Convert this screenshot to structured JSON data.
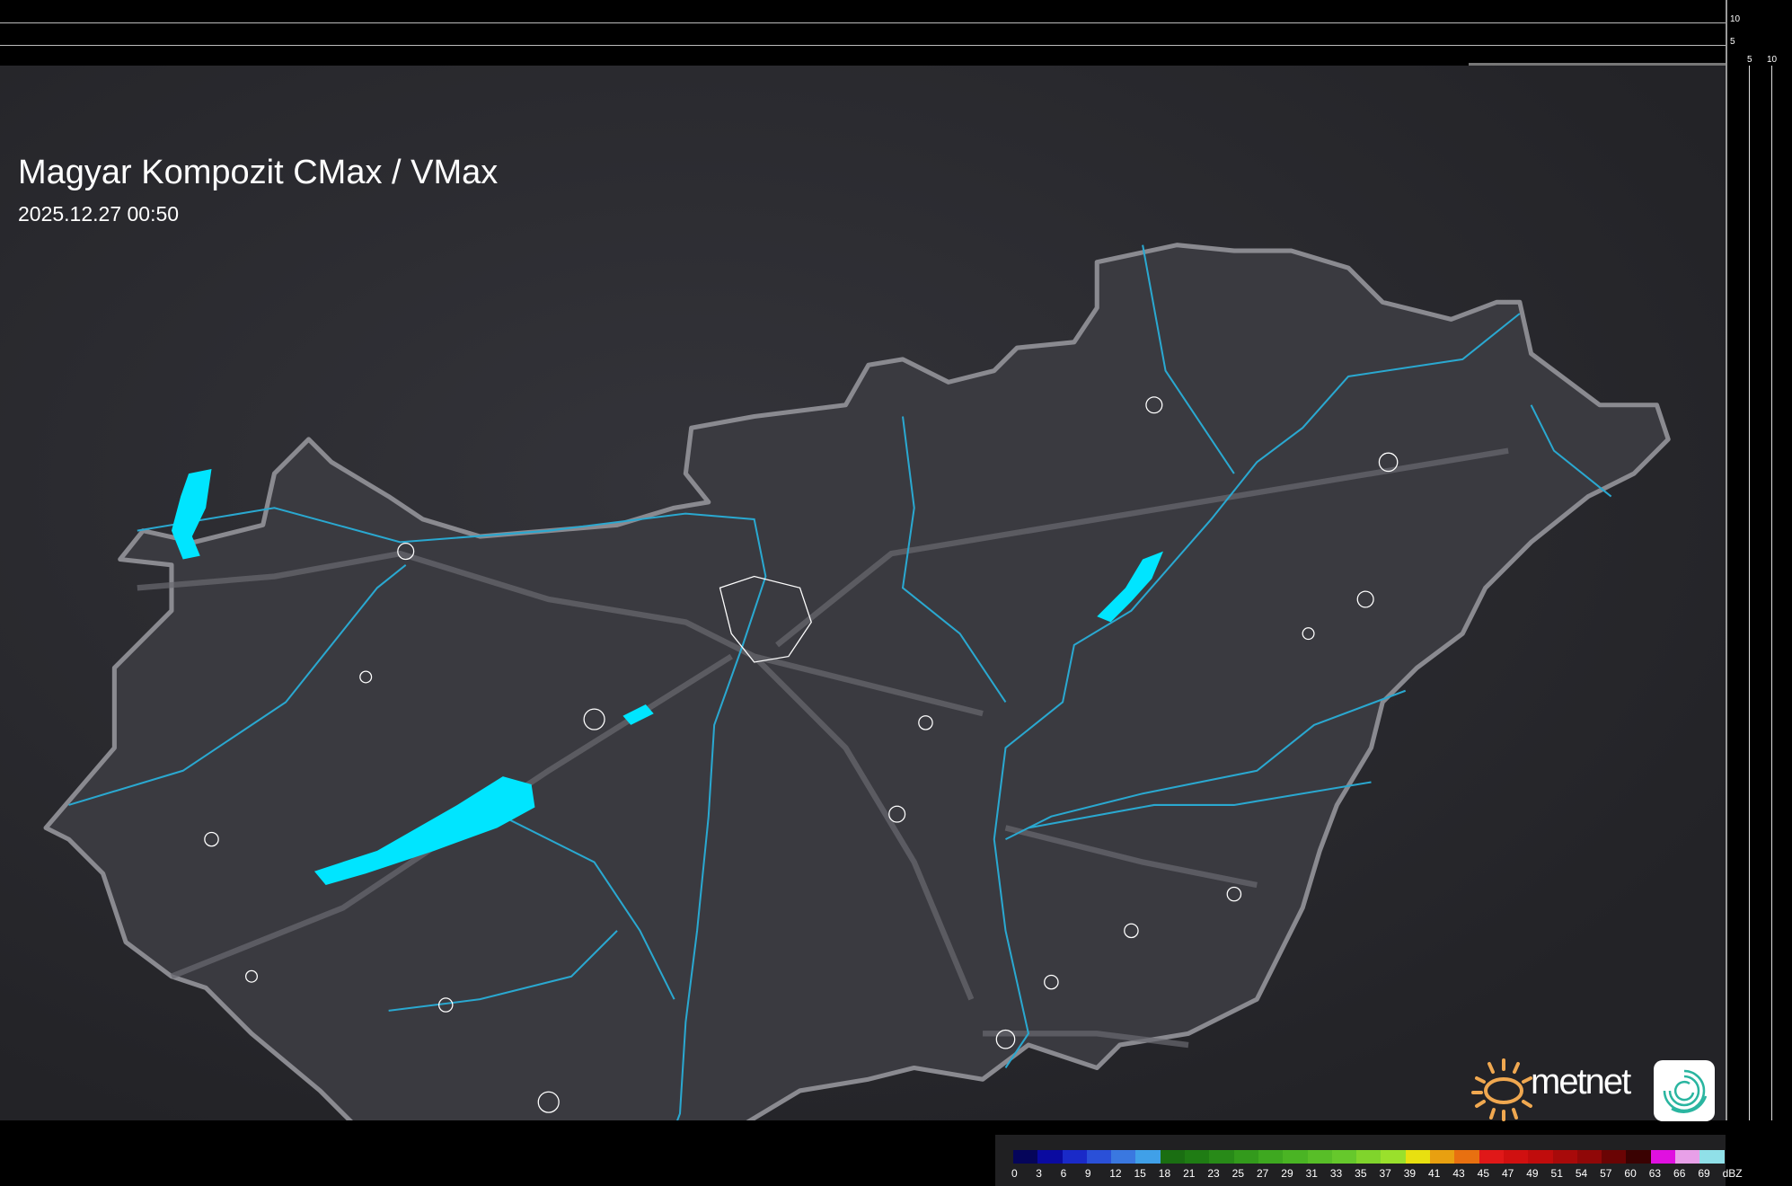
{
  "header": {
    "title": "Magyar Kompozit CMax / VMax",
    "timestamp": "2025.12.27 00:50"
  },
  "frame_axes": {
    "vertical_labels": [
      "10",
      "5"
    ],
    "horizontal_labels": [
      "5",
      "10"
    ]
  },
  "logo": {
    "text": "metnet",
    "sun_color": "#f0a850",
    "swirl_color": "#2ab5a0"
  },
  "map": {
    "background_color": "#2a2a2e",
    "country_fill": "#3a3a40",
    "border_color": "#8a8a90",
    "water_color": "#00e5ff",
    "river_color": "#2aa8d0",
    "settlement_outline_color": "#ffffff"
  },
  "legend": {
    "unit": "dBZ",
    "labels": [
      "0",
      "3",
      "6",
      "9",
      "12",
      "15",
      "18",
      "21",
      "23",
      "25",
      "27",
      "29",
      "31",
      "33",
      "35",
      "37",
      "39",
      "41",
      "43",
      "45",
      "47",
      "49",
      "51",
      "54",
      "57",
      "60",
      "63",
      "66",
      "69"
    ],
    "colors": [
      "#05055a",
      "#0a0aa0",
      "#1a2ac8",
      "#2a50d8",
      "#3a78e0",
      "#40a0e8",
      "#1a6e12",
      "#1f7c14",
      "#288a18",
      "#339a1c",
      "#3ea820",
      "#4ab424",
      "#58be28",
      "#66c82c",
      "#80d42c",
      "#9ae02c",
      "#e8e010",
      "#e8a010",
      "#e87010",
      "#e01818",
      "#d01010",
      "#c00c0c",
      "#a80a0a",
      "#900808",
      "#6a0404",
      "#3a0202",
      "#e010e0",
      "#e8a0e8",
      "#90e0e8"
    ]
  }
}
